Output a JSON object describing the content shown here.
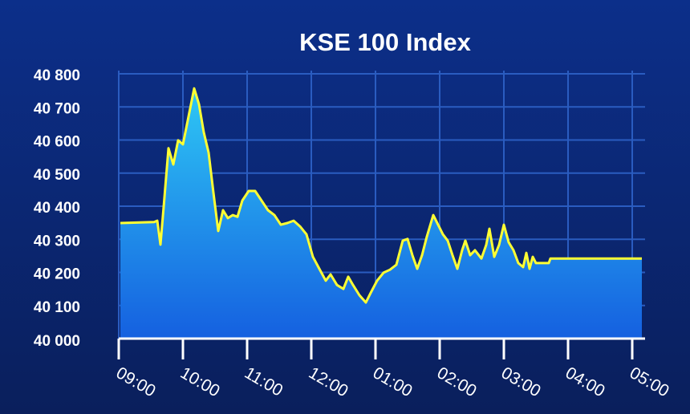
{
  "chart_data": {
    "type": "area",
    "title": "KSE 100 Index",
    "x": [
      9.025,
      9.55,
      9.6,
      9.65,
      9.7,
      9.775,
      9.85,
      9.925,
      10.0,
      10.075,
      10.175,
      10.25,
      10.325,
      10.4,
      10.475,
      10.55,
      10.625,
      10.7,
      10.775,
      10.85,
      10.925,
      11.025,
      11.125,
      11.225,
      11.325,
      11.425,
      11.525,
      11.625,
      11.725,
      11.825,
      11.925,
      12.025,
      12.125,
      12.225,
      12.3,
      12.4,
      12.5,
      12.575,
      12.65,
      12.75,
      12.85,
      12.925,
      13.025,
      13.125,
      13.225,
      13.325,
      13.425,
      13.5,
      13.575,
      13.65,
      13.725,
      13.8,
      13.9,
      13.975,
      14.05,
      14.125,
      14.2,
      14.275,
      14.35,
      14.4,
      14.475,
      14.55,
      14.65,
      14.725,
      14.775,
      14.85,
      14.925,
      15.0,
      15.075,
      15.15,
      15.225,
      15.3,
      15.35,
      15.4,
      15.45,
      15.5,
      15.7,
      15.725,
      17.15
    ],
    "series": [
      {
        "color": "#ffff33",
        "values": [
          40349,
          40352,
          40356,
          40284,
          40398,
          40575,
          40526,
          40599,
          40587,
          40659,
          40756,
          40708,
          40623,
          40562,
          40441,
          40325,
          40388,
          40364,
          40373,
          40368,
          40417,
          40446,
          40446,
          40417,
          40388,
          40373,
          40344,
          40349,
          40356,
          40339,
          40315,
          40247,
          40211,
          40175,
          40194,
          40162,
          40150,
          40187,
          40162,
          40131,
          40109,
          40138,
          40175,
          40199,
          40208,
          40223,
          40296,
          40301,
          40252,
          40211,
          40252,
          40308,
          40373,
          40344,
          40315,
          40296,
          40252,
          40211,
          40267,
          40296,
          40252,
          40267,
          40242,
          40283,
          40332,
          40247,
          40283,
          40344,
          40291,
          40267,
          40228,
          40216,
          40259,
          40211,
          40247,
          40228,
          40228,
          40242,
          40242
        ]
      }
    ],
    "xlim": [
      9,
      17.2
    ],
    "xticks": [
      {
        "value": 9,
        "label": "09:00"
      },
      {
        "value": 10,
        "label": "10:00"
      },
      {
        "value": 11,
        "label": "11:00"
      },
      {
        "value": 12,
        "label": "12:00"
      },
      {
        "value": 13,
        "label": "01:00"
      },
      {
        "value": 14,
        "label": "02:00"
      },
      {
        "value": 15,
        "label": "03:00"
      },
      {
        "value": 16,
        "label": "04:00"
      },
      {
        "value": 17,
        "label": "05:00"
      }
    ],
    "ylim": [
      40000,
      40800
    ],
    "yticks": [
      {
        "value": 40000,
        "label": "40 000"
      },
      {
        "value": 40100,
        "label": "40 100"
      },
      {
        "value": 40200,
        "label": "40 200"
      },
      {
        "value": 40300,
        "label": "40 300"
      },
      {
        "value": 40400,
        "label": "40 400"
      },
      {
        "value": 40500,
        "label": "40 500"
      },
      {
        "value": 40600,
        "label": "40 600"
      },
      {
        "value": 40700,
        "label": "40 700"
      },
      {
        "value": 40800,
        "label": "40 800"
      }
    ],
    "grid": true
  }
}
